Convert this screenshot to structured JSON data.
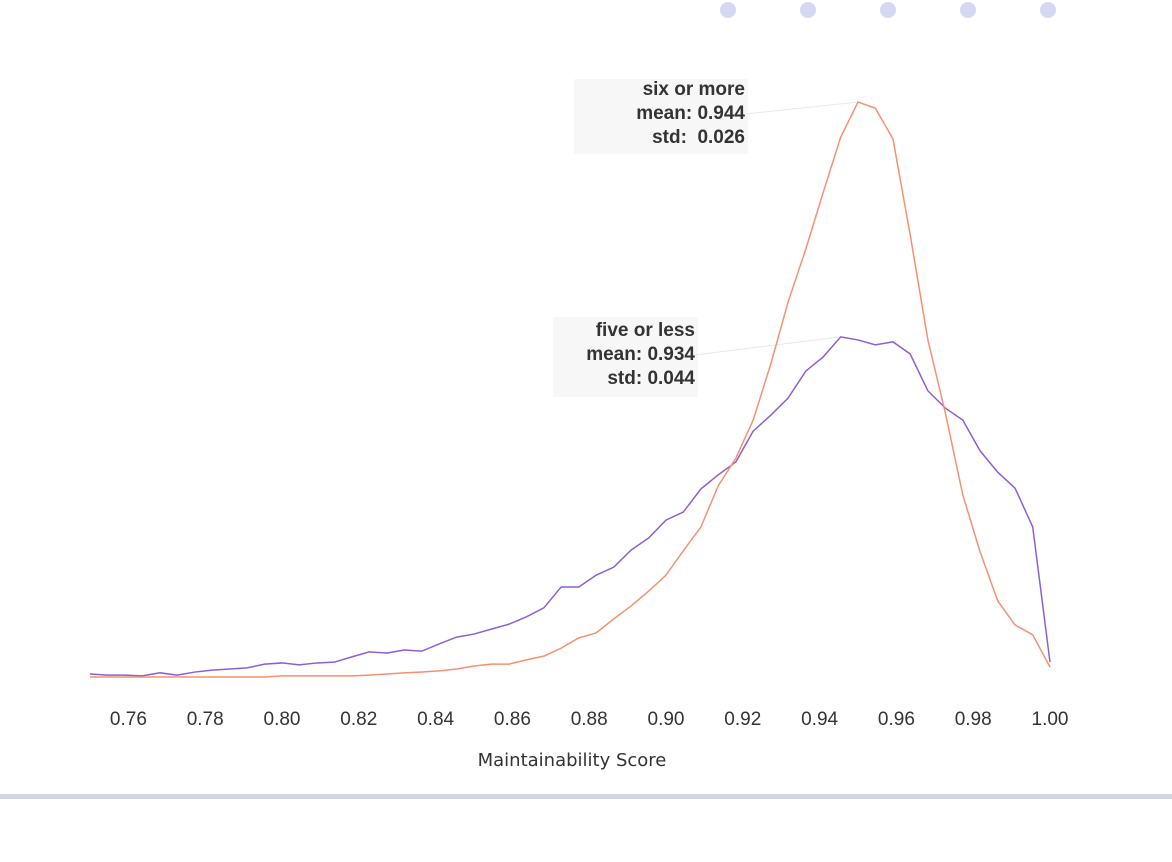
{
  "chart_data": {
    "type": "line",
    "x_label": "Maintainability Score",
    "x": [
      0.75,
      0.7545,
      0.7591,
      0.7636,
      0.7682,
      0.7727,
      0.7773,
      0.7818,
      0.7864,
      0.7909,
      0.7955,
      0.8,
      0.8045,
      0.8091,
      0.8136,
      0.8182,
      0.8227,
      0.8273,
      0.8318,
      0.8364,
      0.8409,
      0.8455,
      0.85,
      0.8545,
      0.8591,
      0.8636,
      0.8682,
      0.8727,
      0.8773,
      0.8818,
      0.8864,
      0.8909,
      0.8955,
      0.9,
      0.9045,
      0.9091,
      0.9136,
      0.9182,
      0.9227,
      0.9273,
      0.9318,
      0.9364,
      0.9409,
      0.9455,
      0.95,
      0.9545,
      0.9591,
      0.9636,
      0.9682,
      0.9727,
      0.9773,
      0.9818,
      0.9864,
      0.9909,
      0.9955,
      1.0
    ],
    "series": [
      {
        "name": "five or less",
        "color": "#8c5fd6",
        "annotation": [
          "mean: 0.934",
          "std: 0.044"
        ],
        "values": [
          0.08,
          0.05,
          0.05,
          0.03,
          0.11,
          0.05,
          0.13,
          0.18,
          0.21,
          0.24,
          0.34,
          0.37,
          0.32,
          0.37,
          0.39,
          0.53,
          0.66,
          0.63,
          0.71,
          0.68,
          0.87,
          1.05,
          1.13,
          1.26,
          1.39,
          1.58,
          1.82,
          2.37,
          2.37,
          2.68,
          2.89,
          3.34,
          3.66,
          4.13,
          4.34,
          4.95,
          5.32,
          5.66,
          6.47,
          6.89,
          7.34,
          8.05,
          8.42,
          8.95,
          8.87,
          8.74,
          8.82,
          8.5,
          7.53,
          7.08,
          6.76,
          5.95,
          5.39,
          4.97,
          3.95,
          0.39
        ]
      },
      {
        "name": "six or more",
        "color": "#f4926f",
        "annotation": [
          "mean: 0.944",
          "std:  0.026"
        ],
        "values": [
          0,
          0,
          0,
          0,
          0,
          0,
          0,
          0,
          0,
          0,
          0,
          0.03,
          0.03,
          0.03,
          0.03,
          0.03,
          0.05,
          0.08,
          0.11,
          0.13,
          0.16,
          0.21,
          0.29,
          0.34,
          0.34,
          0.45,
          0.55,
          0.76,
          1.03,
          1.16,
          1.53,
          1.87,
          2.26,
          2.68,
          3.32,
          3.95,
          5.03,
          5.76,
          6.76,
          8.24,
          9.87,
          11.26,
          12.74,
          14.21,
          15.13,
          14.97,
          14.16,
          11.63,
          8.87,
          6.97,
          4.79,
          3.29,
          2.0,
          1.37,
          1.11,
          0.26
        ]
      }
    ],
    "xlim": [
      0.75,
      1.0
    ],
    "xticks": [
      {
        "value": 0.76,
        "label": "0.76"
      },
      {
        "value": 0.78,
        "label": "0.78"
      },
      {
        "value": 0.8,
        "label": "0.80"
      },
      {
        "value": 0.82,
        "label": "0.82"
      },
      {
        "value": 0.84,
        "label": "0.84"
      },
      {
        "value": 0.86,
        "label": "0.86"
      },
      {
        "value": 0.88,
        "label": "0.88"
      },
      {
        "value": 0.9,
        "label": "0.90"
      },
      {
        "value": 0.92,
        "label": "0.92"
      },
      {
        "value": 0.94,
        "label": "0.94"
      },
      {
        "value": 0.96,
        "label": "0.96"
      },
      {
        "value": 0.98,
        "label": "0.98"
      },
      {
        "value": 1.0,
        "label": "1.00"
      }
    ],
    "ylim": [
      0,
      16
    ],
    "grid": false
  }
}
